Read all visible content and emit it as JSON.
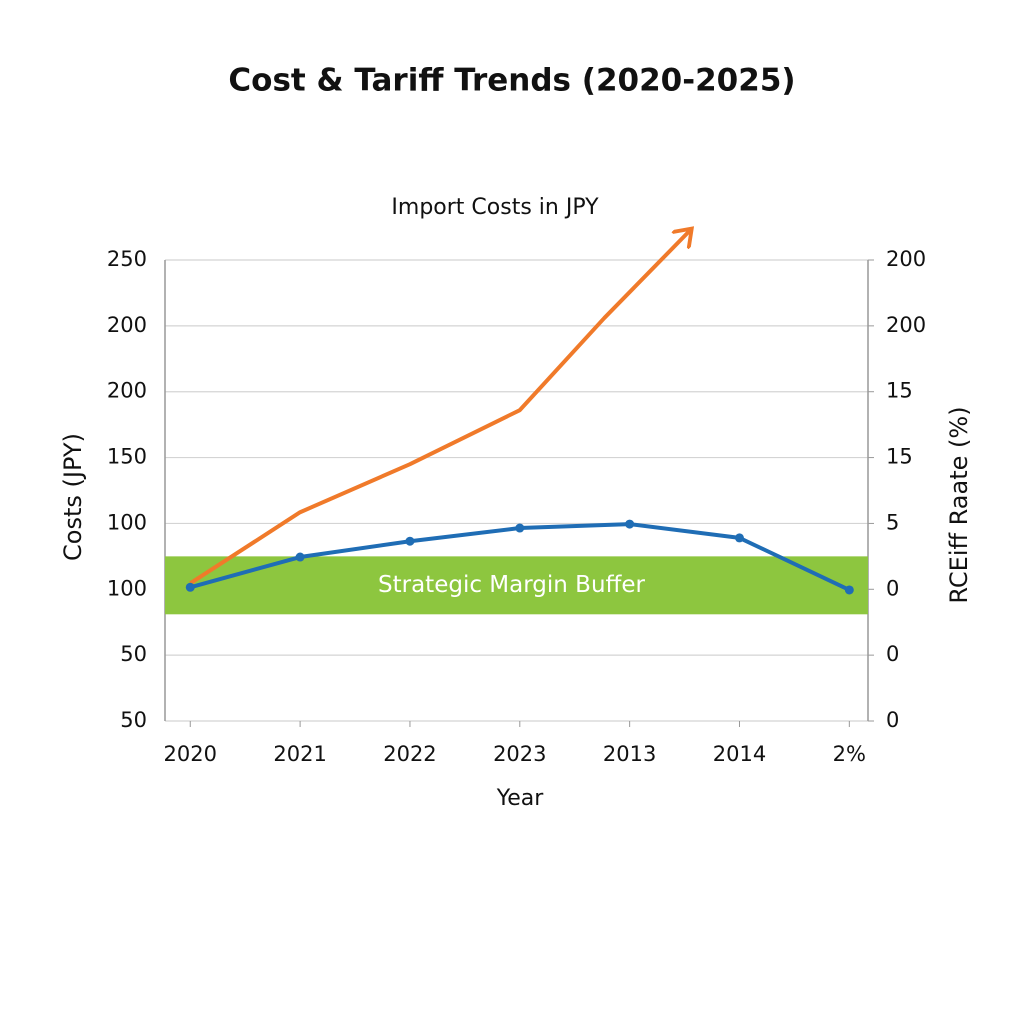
{
  "chart_data": {
    "type": "line",
    "title": "Cost & Tariff Trends (2020-2025)",
    "subtitle": "Import Costs in JPY",
    "x_label": "Year",
    "y_label": "Costs (JPY)",
    "y2_label": "RCEiff Raate (%)",
    "xlim": [
      -0.23,
      6.17
    ],
    "xticks": [
      {
        "value": 0,
        "label": "2020"
      },
      {
        "value": 1,
        "label": "2021"
      },
      {
        "value": 2,
        "label": "2022"
      },
      {
        "value": 3,
        "label": "2023"
      },
      {
        "value": 4,
        "label": "2013"
      },
      {
        "value": 5,
        "label": "2014"
      },
      {
        "value": 6,
        "label": "2%"
      }
    ],
    "ylim": [
      0,
      7
    ],
    "yticks": [
      {
        "value": 0,
        "label": "50"
      },
      {
        "value": 1,
        "label": "50"
      },
      {
        "value": 2,
        "label": "100"
      },
      {
        "value": 3,
        "label": "100"
      },
      {
        "value": 4,
        "label": "150"
      },
      {
        "value": 5,
        "label": "200"
      },
      {
        "value": 6,
        "label": "200"
      },
      {
        "value": 7,
        "label": "250"
      }
    ],
    "y2lim": [
      0,
      7
    ],
    "y2ticks": [
      {
        "value": 0,
        "label": "0"
      },
      {
        "value": 1,
        "label": "0"
      },
      {
        "value": 2,
        "label": "0"
      },
      {
        "value": 3,
        "label": "5"
      },
      {
        "value": 4,
        "label": "15"
      },
      {
        "value": 5,
        "label": "15"
      },
      {
        "value": 6,
        "label": "200"
      },
      {
        "value": 7,
        "label": "200"
      }
    ],
    "grid": true,
    "band": {
      "label": "Strategic Margin Buffer",
      "from": 1.62,
      "to": 2.5,
      "color": "#8dc63f"
    },
    "series": [
      {
        "color": "#f07a2a",
        "arrow": true,
        "markers": false,
        "x": [
          0,
          1,
          2,
          3,
          3.77,
          4.55
        ],
        "values": [
          2.09,
          3.17,
          3.9,
          4.72,
          6.12,
          7.45
        ]
      },
      {
        "color": "#1f6db5",
        "arrow": false,
        "markers": true,
        "x": [
          0,
          1,
          2,
          3,
          4,
          5,
          6
        ],
        "values": [
          2.03,
          2.49,
          2.73,
          2.93,
          2.99,
          2.78,
          1.99
        ]
      }
    ]
  }
}
